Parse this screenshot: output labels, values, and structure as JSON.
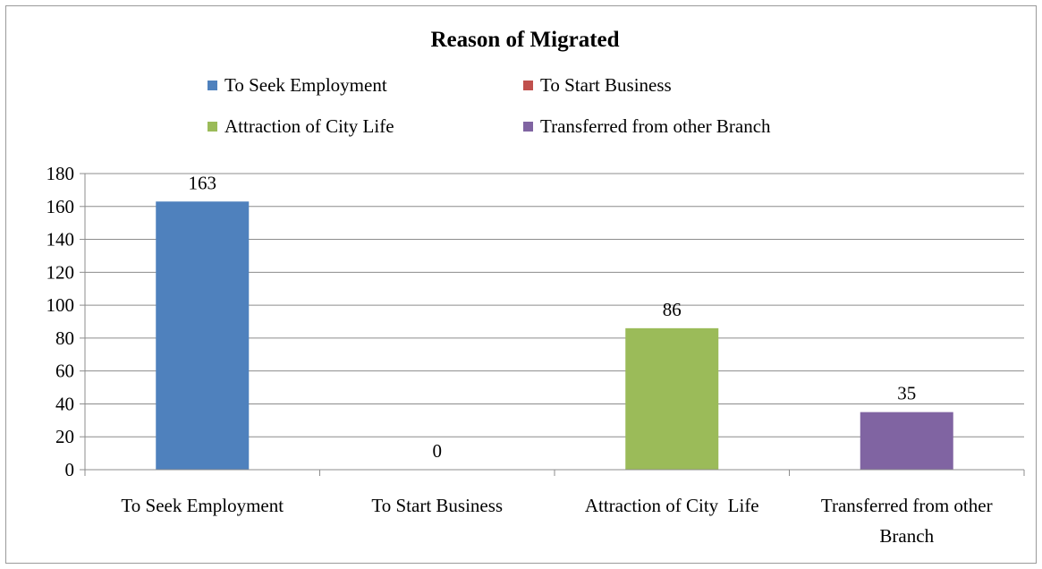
{
  "chart_data": {
    "type": "bar",
    "title": "Reason of Migrated",
    "categories": [
      "To Seek Employment",
      "To Start Business",
      "Attraction of City Life",
      "Transferred from other Branch"
    ],
    "category_labels": [
      [
        "To Seek Employment"
      ],
      [
        "To Start Business"
      ],
      [
        "Attraction of City  Life"
      ],
      [
        "Transferred from other",
        "Branch"
      ]
    ],
    "values": [
      163,
      0,
      86,
      35
    ],
    "data_labels": [
      "163",
      "0",
      "86",
      "35"
    ],
    "colors": [
      "#4f81bd",
      "#c0504d",
      "#9bbb59",
      "#8064a2"
    ],
    "legend": {
      "placement": "top",
      "entries": [
        "To Seek Employment",
        "To Start Business",
        "Attraction of City Life",
        "Transferred from other Branch"
      ]
    },
    "ylim": [
      0,
      180
    ],
    "yticks": [
      0,
      20,
      40,
      60,
      80,
      100,
      120,
      140,
      160,
      180
    ],
    "xlabel": "",
    "ylabel": "",
    "grid": true
  }
}
